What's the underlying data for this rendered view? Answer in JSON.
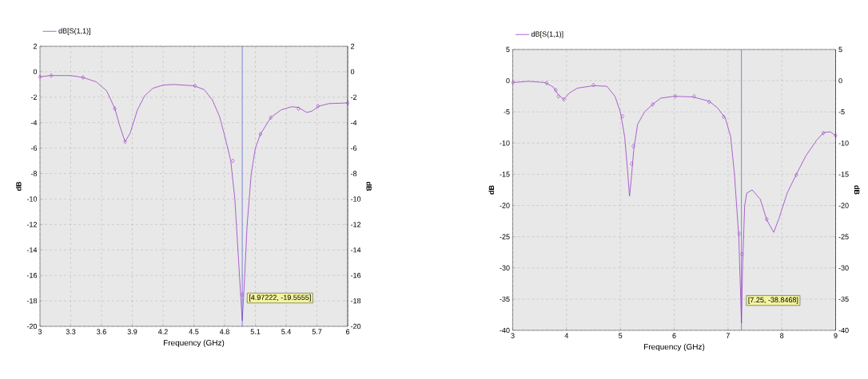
{
  "chart_data": [
    {
      "type": "line",
      "xlabel": "Frequency (GHz)",
      "ylabel": "dB",
      "y2label": "dB",
      "xlim": [
        3,
        6
      ],
      "xticks": [
        3,
        3.3,
        3.6,
        3.9,
        4.2,
        4.5,
        4.8,
        5.1,
        5.4,
        5.7,
        6
      ],
      "ylim": [
        -20,
        2
      ],
      "yticks": [
        2,
        0,
        -2,
        -4,
        -6,
        -8,
        -10,
        -12,
        -14,
        -16,
        -18,
        -20
      ],
      "y2lim": [
        -20,
        2
      ],
      "y2ticks": [
        2,
        0,
        -2,
        -4,
        -6,
        -8,
        -10,
        -12,
        -14,
        -16,
        -18,
        -20
      ],
      "grid": true,
      "legend": "top left",
      "series": [
        {
          "name": "dB[S(1,1)]",
          "type": "line",
          "color": "#9b3fc4",
          "line_style": "solid",
          "x": [
            3.0,
            3.1,
            3.3,
            3.42,
            3.55,
            3.65,
            3.73,
            3.78,
            3.83,
            3.88,
            3.95,
            4.02,
            4.1,
            4.2,
            4.3,
            4.5,
            4.6,
            4.68,
            4.75,
            4.8,
            4.86,
            4.9,
            4.93,
            4.96,
            4.97222,
            4.99,
            5.02,
            5.06,
            5.1,
            5.15,
            5.25,
            5.35,
            5.45,
            5.52,
            5.6,
            5.65,
            5.72,
            5.82,
            6.0
          ],
          "values": [
            -0.4,
            -0.3,
            -0.3,
            -0.45,
            -0.8,
            -1.5,
            -2.9,
            -4.3,
            -5.5,
            -4.8,
            -3.0,
            -1.9,
            -1.3,
            -1.05,
            -1.0,
            -1.1,
            -1.4,
            -2.2,
            -3.5,
            -5.0,
            -7.0,
            -10,
            -14,
            -18,
            -19.5555,
            -17,
            -12,
            -8,
            -6,
            -4.9,
            -3.6,
            -3.0,
            -2.75,
            -2.8,
            -3.2,
            -3.1,
            -2.7,
            -2.5,
            -2.45
          ]
        },
        {
          "type": "scatter",
          "color": "#9b3fc4",
          "marker": "diamond",
          "x": [
            3.0,
            3.11,
            3.42,
            3.73,
            3.83,
            4.51,
            4.88,
            4.97,
            5.15,
            5.25,
            5.52,
            5.71,
            6.0
          ],
          "values": [
            -0.4,
            -0.3,
            -0.45,
            -2.9,
            -5.5,
            -1.1,
            -7.0,
            -17.5,
            -4.9,
            -3.6,
            -2.9,
            -2.7,
            -2.45
          ]
        }
      ],
      "ref_lines": [
        {
          "axis": "x",
          "value": 4.97222,
          "color": "#4a5ad6"
        }
      ],
      "annotations": [
        {
          "text": "[4.97222, -19.5555]",
          "x": 4.97222,
          "y": -19.5555
        }
      ]
    },
    {
      "type": "line",
      "xlabel": "Frequency (GHz)",
      "ylabel": "dB",
      "y2label": "dB",
      "xlim": [
        3,
        9
      ],
      "xticks": [
        3,
        4,
        5,
        6,
        7,
        8,
        9
      ],
      "ylim": [
        -40,
        5
      ],
      "yticks": [
        5,
        0,
        -5,
        -10,
        -15,
        -20,
        -25,
        -30,
        -35,
        -40
      ],
      "y2lim": [
        -40,
        5
      ],
      "y2ticks": [
        5,
        0,
        -5,
        -10,
        -15,
        -20,
        -25,
        -30,
        -35,
        -40
      ],
      "grid": true,
      "legend": "top left",
      "series": [
        {
          "name": "dB[S(1,1)]",
          "type": "line",
          "color": "#9b3fc4",
          "line_style": "solid",
          "x": [
            3.0,
            3.3,
            3.6,
            3.75,
            3.85,
            3.95,
            4.05,
            4.2,
            4.5,
            4.75,
            4.9,
            5.0,
            5.08,
            5.13,
            5.17,
            5.2,
            5.25,
            5.32,
            5.45,
            5.6,
            5.75,
            6.0,
            6.35,
            6.65,
            6.8,
            6.95,
            7.05,
            7.12,
            7.2,
            7.23,
            7.25,
            7.27,
            7.31,
            7.35,
            7.45,
            7.6,
            7.72,
            7.85,
            7.95,
            8.1,
            8.27,
            8.45,
            8.65,
            8.78,
            8.9,
            9.0
          ],
          "values": [
            -0.3,
            -0.1,
            -0.3,
            -1.0,
            -2.3,
            -3.0,
            -2.0,
            -1.2,
            -0.8,
            -0.9,
            -2.5,
            -5.0,
            -9,
            -14,
            -18.5,
            -16,
            -11,
            -7,
            -5.0,
            -3.8,
            -2.8,
            -2.5,
            -2.6,
            -3.3,
            -4.3,
            -6.0,
            -9,
            -15,
            -25,
            -33,
            -38.8468,
            -30,
            -20,
            -18,
            -17.5,
            -19,
            -22.3,
            -24.3,
            -22,
            -18,
            -15,
            -12,
            -9.5,
            -8.3,
            -8.2,
            -8.8
          ]
        },
        {
          "type": "scatter",
          "color": "#9b3fc4",
          "marker": "diamond",
          "x": [
            3.0,
            3.63,
            3.8,
            3.85,
            3.95,
            4.5,
            5.04,
            5.21,
            5.24,
            5.6,
            6.02,
            6.37,
            6.65,
            6.92,
            7.21,
            7.26,
            7.72,
            8.27,
            8.77,
            9.0
          ],
          "values": [
            -0.3,
            -0.4,
            -1.5,
            -2.5,
            -3.0,
            -0.7,
            -5.7,
            -13.3,
            -10.5,
            -3.8,
            -2.5,
            -2.5,
            -3.4,
            -5.8,
            -24.5,
            -27.8,
            -22.2,
            -15.1,
            -8.4,
            -8.8
          ]
        }
      ],
      "ref_lines": [
        {
          "axis": "x",
          "value": 7.25,
          "color": "#4a5ad6"
        }
      ],
      "annotations": [
        {
          "text": "[7.25, -38.8468]",
          "x": 7.25,
          "y": -38.8468
        }
      ]
    }
  ]
}
